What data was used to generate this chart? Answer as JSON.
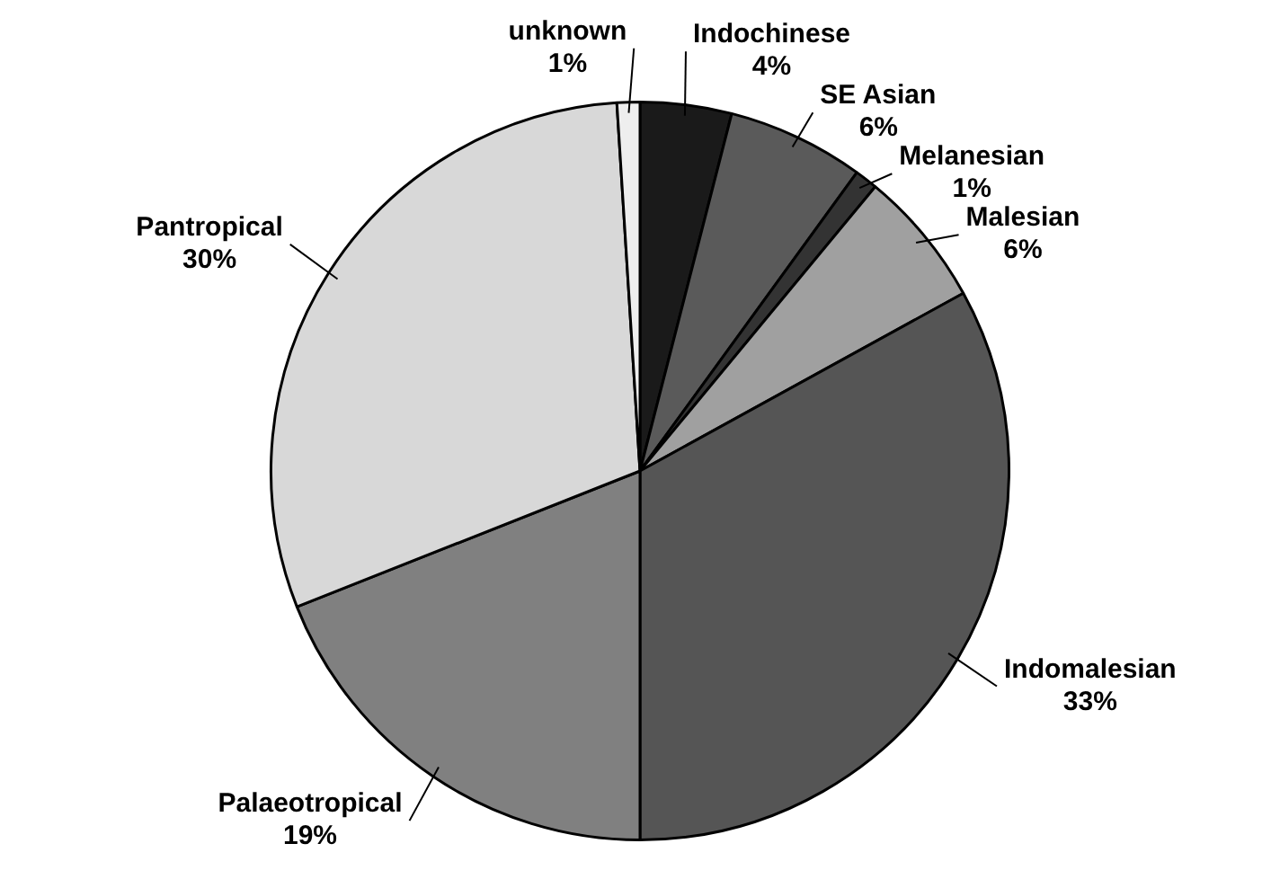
{
  "chart_data": {
    "type": "pie",
    "categories": [
      "Indochinese",
      "SE Asian",
      "Melanesian",
      "Malesian",
      "Indomalesian",
      "Palaeotropical",
      "Pantropical",
      "unknown"
    ],
    "values": [
      4,
      6,
      1,
      6,
      33,
      19,
      30,
      1
    ],
    "value_labels": [
      "4%",
      "6%",
      "1%",
      "6%",
      "33%",
      "19%",
      "30%",
      "1%"
    ],
    "colors": [
      "#1a1a1a",
      "#5a5a5a",
      "#333333",
      "#a0a0a0",
      "#555555",
      "#808080",
      "#d8d8d8",
      "#eeeeee"
    ],
    "legend": false
  }
}
